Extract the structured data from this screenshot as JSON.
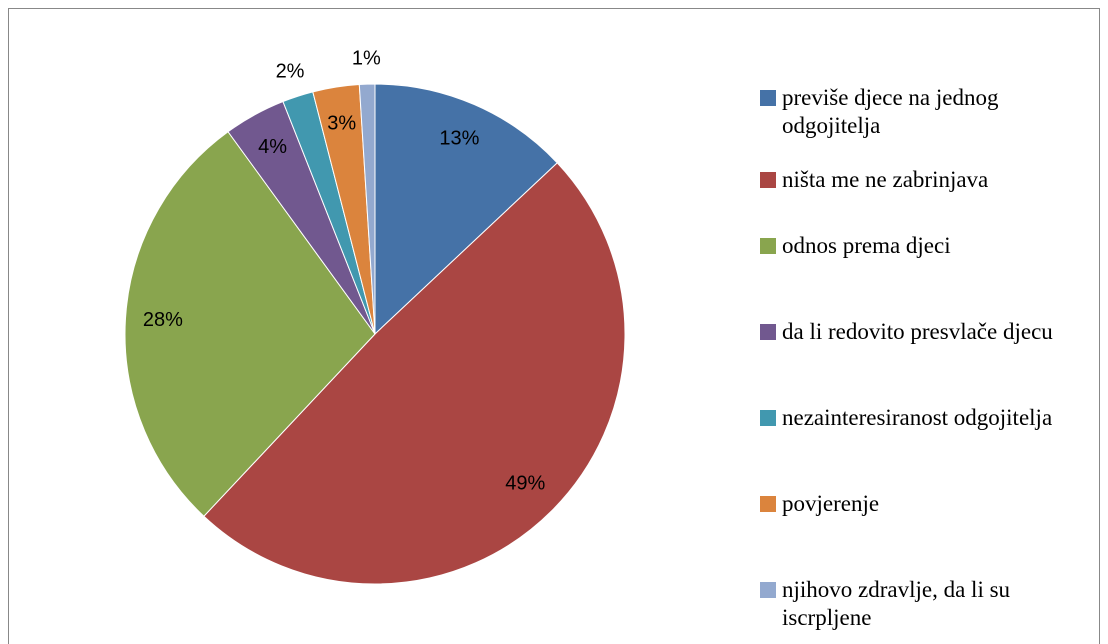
{
  "chart_data": {
    "type": "pie",
    "categories": [
      "previše djece na jednog odgojitelja",
      "ništa me ne zabrinjava",
      "odnos prema djeci",
      "da li redovito presvlače djecu",
      "nezainteresiranost odgojitelja",
      "povjerenje",
      "njihovo zdravlje, da li su iscrpljene"
    ],
    "values": [
      13,
      49,
      28,
      4,
      2,
      3,
      1
    ],
    "value_labels": [
      "13%",
      "49%",
      "28%",
      "4%",
      "2%",
      "3%",
      "1%"
    ],
    "colors": [
      "#4572a7",
      "#aa4643",
      "#89a54e",
      "#71588f",
      "#4198af",
      "#db843d",
      "#93a9cf"
    ],
    "legend": "right"
  }
}
